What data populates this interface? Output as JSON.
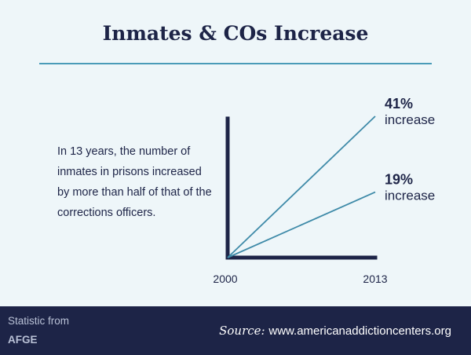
{
  "title": "Inmates & COs Increase",
  "description": "In 13 years, the number of inmates in prisons increased by more than half of that of the corrections officers.",
  "chart_data": {
    "type": "line",
    "x": [
      2000,
      2013
    ],
    "x_tick_labels": [
      "2000",
      "2013"
    ],
    "series": [
      {
        "values": [
          0,
          41
        ],
        "label_value": "41%",
        "label_text": "increase"
      },
      {
        "values": [
          0,
          19
        ],
        "label_value": "19%",
        "label_text": "increase"
      }
    ],
    "ylim": [
      0,
      41
    ],
    "grid": false,
    "colors": {
      "axis": "#1d2447",
      "lines": "#3e8aa8"
    }
  },
  "footer": {
    "stat_label": "Statistic from",
    "stat_source": "AFGE",
    "source_label": "Source:",
    "source_url": "www.americanaddictioncenters.org"
  }
}
